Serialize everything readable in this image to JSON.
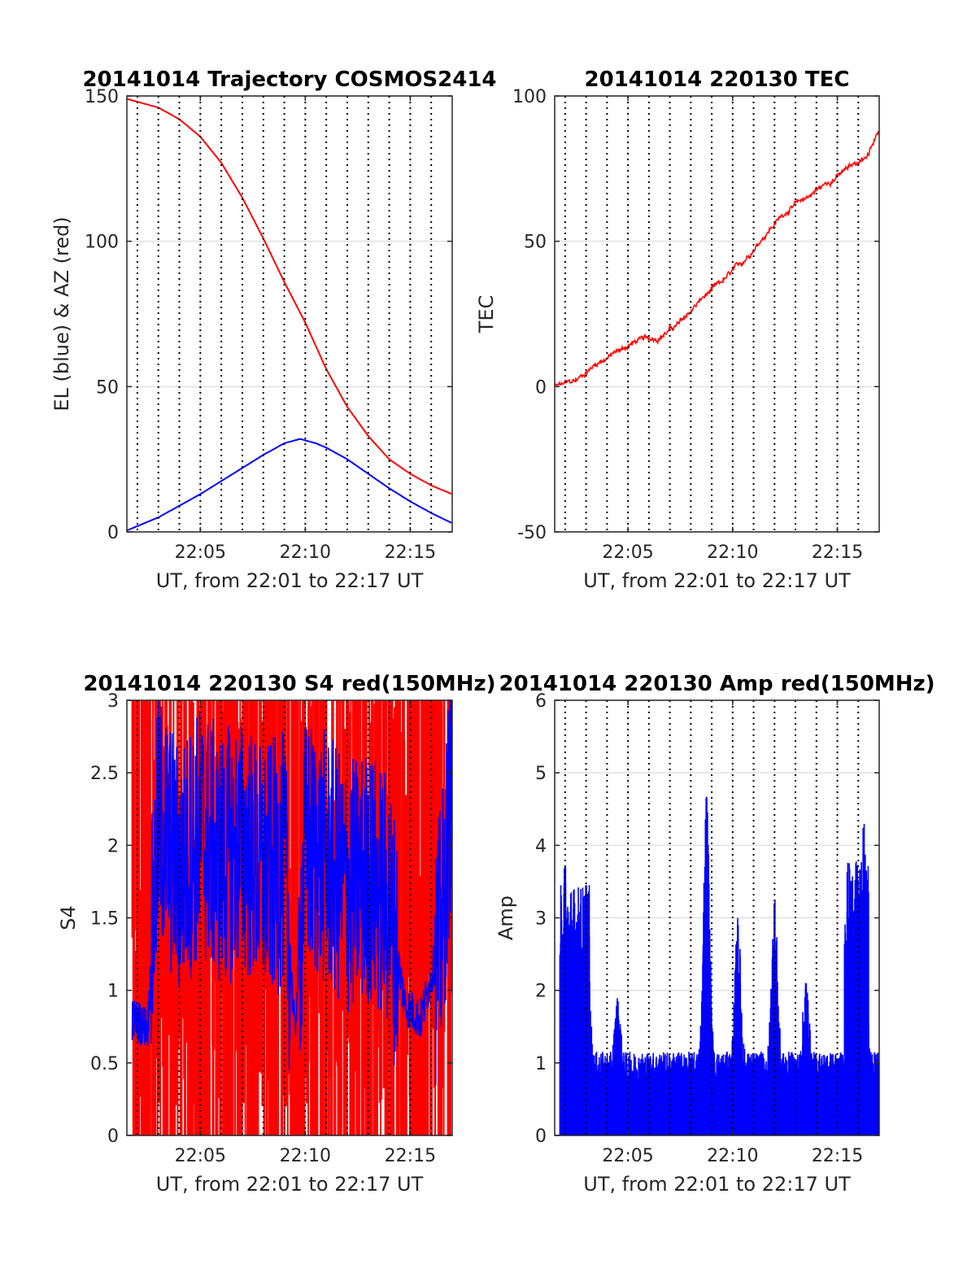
{
  "chart_data": [
    {
      "type": "line",
      "title": "20141014 Trajectory COSMOS2414",
      "xlabel": "UT, from 22:01 to 22:17 UT",
      "ylabel": "EL (blue) & AZ (red)",
      "xlim": [
        "22:01:30",
        "22:17:00"
      ],
      "ylim": [
        0,
        150
      ],
      "x_ticks": [
        "22:05",
        "22:10",
        "22:15"
      ],
      "y_ticks": [
        "0",
        "50",
        "100",
        "150"
      ],
      "grid": true,
      "colors": {
        "series_a": "#ff0000",
        "series_b": "#0000ff"
      },
      "series": [
        {
          "color": "red",
          "x": [
            "22:01:30",
            "22:03:00",
            "22:04:00",
            "22:05:00",
            "22:06:00",
            "22:07:00",
            "22:08:00",
            "22:09:00",
            "22:10:00",
            "22:11:00",
            "22:12:00",
            "22:13:00",
            "22:14:00",
            "22:15:00",
            "22:16:00",
            "22:17:00"
          ],
          "values": [
            149,
            146,
            142,
            136,
            127,
            115,
            101,
            86,
            72,
            56,
            43,
            33,
            25,
            20,
            16,
            13
          ]
        },
        {
          "color": "blue",
          "x": [
            "22:01:30",
            "22:03:00",
            "22:04:00",
            "22:05:00",
            "22:06:00",
            "22:07:00",
            "22:08:00",
            "22:09:00",
            "22:09:45",
            "22:10:30",
            "22:11:00",
            "22:12:00",
            "22:13:00",
            "22:14:00",
            "22:15:00",
            "22:16:00",
            "22:17:00"
          ],
          "values": [
            0.5,
            5,
            9,
            13,
            17.5,
            22,
            26.5,
            30.5,
            32,
            30.5,
            29,
            25,
            20,
            15,
            10.5,
            6.5,
            3
          ]
        }
      ]
    },
    {
      "type": "line",
      "title": "20141014 220130 TEC",
      "xlabel": "UT, from 22:01 to 22:17 UT",
      "ylabel": "TEC",
      "xlim": [
        "22:01:30",
        "22:17:00"
      ],
      "ylim": [
        -50,
        100
      ],
      "x_ticks": [
        "22:05",
        "22:10",
        "22:15"
      ],
      "y_ticks": [
        "-50",
        "0",
        "50",
        "100"
      ],
      "grid": true,
      "series": [
        {
          "color": "red",
          "x": [
            "22:01:30",
            "22:02:30",
            "22:03:30",
            "22:04:30",
            "22:05:30",
            "22:06:30",
            "22:07:30",
            "22:08:30",
            "22:09:30",
            "22:10:30",
            "22:11:30",
            "22:12:30",
            "22:13:30",
            "22:14:30",
            "22:15:30",
            "22:16:30",
            "22:17:00"
          ],
          "values": [
            0,
            2,
            8,
            12,
            16,
            17,
            22,
            30,
            36,
            43,
            52,
            60,
            65,
            70,
            75,
            80,
            88
          ]
        }
      ]
    },
    {
      "type": "line",
      "title": "20141014 220130 S4 red(150MHz)",
      "xlabel": "UT, from 22:01 to 22:17 UT",
      "ylabel": "S4",
      "xlim": [
        "22:01:30",
        "22:17:00"
      ],
      "ylim": [
        0,
        3
      ],
      "x_ticks": [
        "22:05",
        "22:10",
        "22:15"
      ],
      "y_ticks": [
        "0",
        "0.5",
        "1",
        "1.5",
        "2",
        "2.5",
        "3"
      ],
      "grid": true,
      "series": [
        {
          "color": "red",
          "x": [
            "22:01:45",
            "22:02:30",
            "22:03:30",
            "22:04:30",
            "22:05:30",
            "22:06:30",
            "22:07:30",
            "22:08:30",
            "22:09:30",
            "22:10:30",
            "22:11:30",
            "22:12:30",
            "22:13:30",
            "22:14:30",
            "22:15:30",
            "22:16:30",
            "22:17:00"
          ],
          "values": [
            3,
            0,
            3,
            1.6,
            3,
            0,
            3,
            0,
            3,
            0,
            3,
            0,
            3,
            0,
            3,
            0,
            3
          ]
        },
        {
          "color": "blue",
          "x": [
            "22:01:45",
            "22:02:30",
            "22:03:00",
            "22:04:00",
            "22:05:00",
            "22:06:00",
            "22:07:00",
            "22:08:00",
            "22:09:00",
            "22:09:30",
            "22:10:00",
            "22:11:00",
            "22:12:00",
            "22:13:00",
            "22:14:00",
            "22:14:45",
            "22:15:30",
            "22:16:30",
            "22:17:00"
          ],
          "values": [
            0.8,
            0.75,
            2.2,
            1.8,
            2.1,
            1.9,
            2.0,
            1.8,
            1.9,
            0.7,
            2.0,
            1.9,
            1.7,
            1.8,
            1.6,
            0.9,
            0.8,
            1.4,
            2.6
          ]
        }
      ]
    },
    {
      "type": "line",
      "title": "20141014 220130 Amp red(150MHz)",
      "xlabel": "UT, from 22:01 to 22:17 UT",
      "ylabel": "Amp",
      "xlim": [
        "22:01:30",
        "22:17:00"
      ],
      "ylim": [
        0,
        6
      ],
      "x_ticks": [
        "22:05",
        "22:10",
        "22:15"
      ],
      "y_ticks": [
        "0",
        "1",
        "2",
        "3",
        "4",
        "5",
        "6"
      ],
      "grid": true,
      "series": [
        {
          "color": "blue",
          "peaks": [
            {
              "x": "22:02:00",
              "value": 3.7
            },
            {
              "x": "22:03:00",
              "value": 3.45
            },
            {
              "x": "22:04:30",
              "value": 1.85
            },
            {
              "x": "22:08:45",
              "value": 4.65
            },
            {
              "x": "22:10:15",
              "value": 2.9
            },
            {
              "x": "22:12:00",
              "value": 3.2
            },
            {
              "x": "22:13:30",
              "value": 2.1
            },
            {
              "x": "22:16:15",
              "value": 4.2
            }
          ],
          "baseline": 1.0
        }
      ]
    }
  ]
}
